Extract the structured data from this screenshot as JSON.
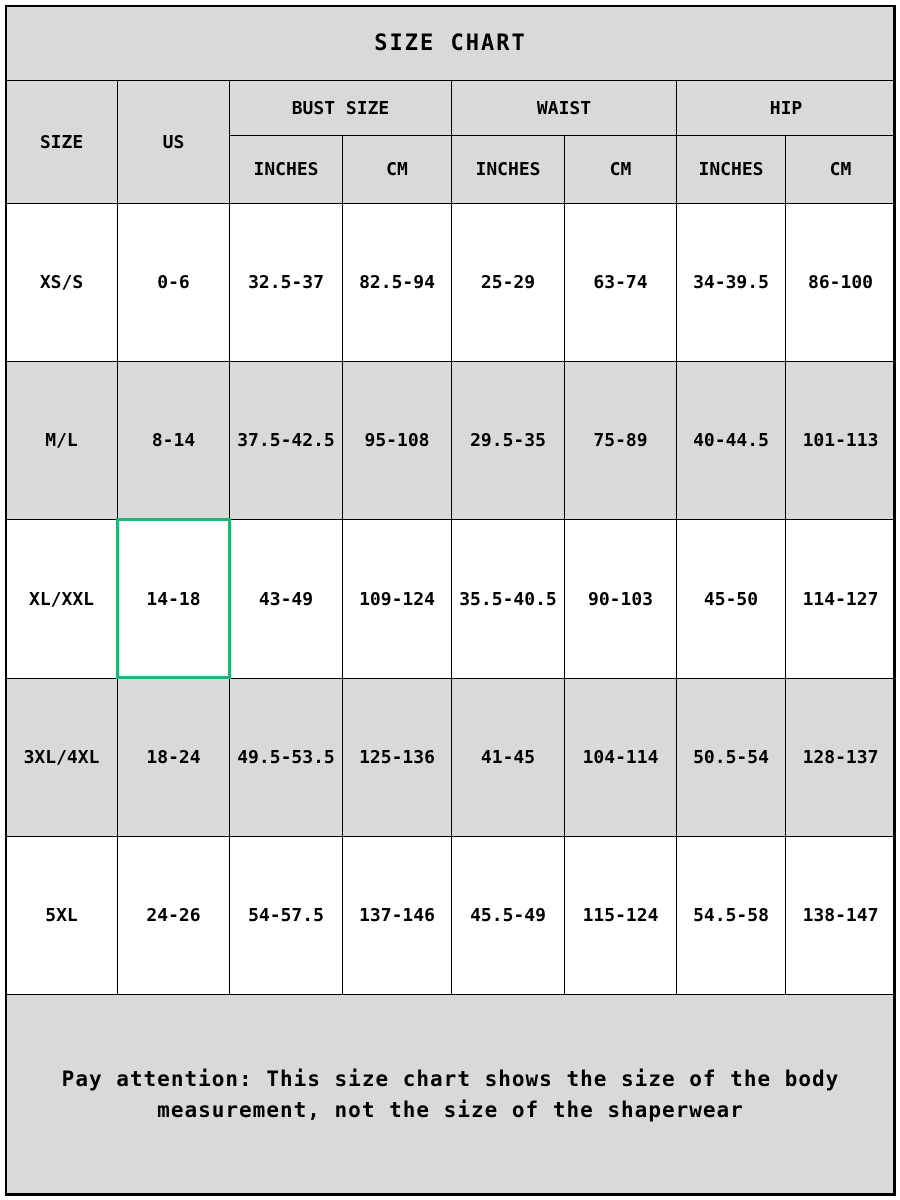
{
  "table": {
    "title": "SIZE CHART",
    "header": {
      "size": "SIZE",
      "us": "US",
      "groups": [
        "BUST SIZE",
        "WAIST",
        "HIP"
      ],
      "units": [
        "INCHES",
        "CM",
        "INCHES",
        "CM",
        "INCHES",
        "CM"
      ]
    },
    "rows": [
      [
        "XS/S",
        "0-6",
        "32.5-37",
        "82.5-94",
        "25-29",
        "63-74",
        "34-39.5",
        "86-100"
      ],
      [
        "M/L",
        "8-14",
        "37.5-42.5",
        "95-108",
        "29.5-35",
        "75-89",
        "40-44.5",
        "101-113"
      ],
      [
        "XL/XXL",
        "14-18",
        "43-49",
        "109-124",
        "35.5-40.5",
        "90-103",
        "45-50",
        "114-127"
      ],
      [
        "3XL/4XL",
        "18-24",
        "49.5-53.5",
        "125-136",
        "41-45",
        "104-114",
        "50.5-54",
        "128-137"
      ],
      [
        "5XL",
        "24-26",
        "54-57.5",
        "137-146",
        "45.5-49",
        "115-124",
        "54.5-58",
        "138-147"
      ]
    ],
    "note": "Pay attention: This size chart shows the size of the body measurement, not the size of the shaperwear"
  }
}
